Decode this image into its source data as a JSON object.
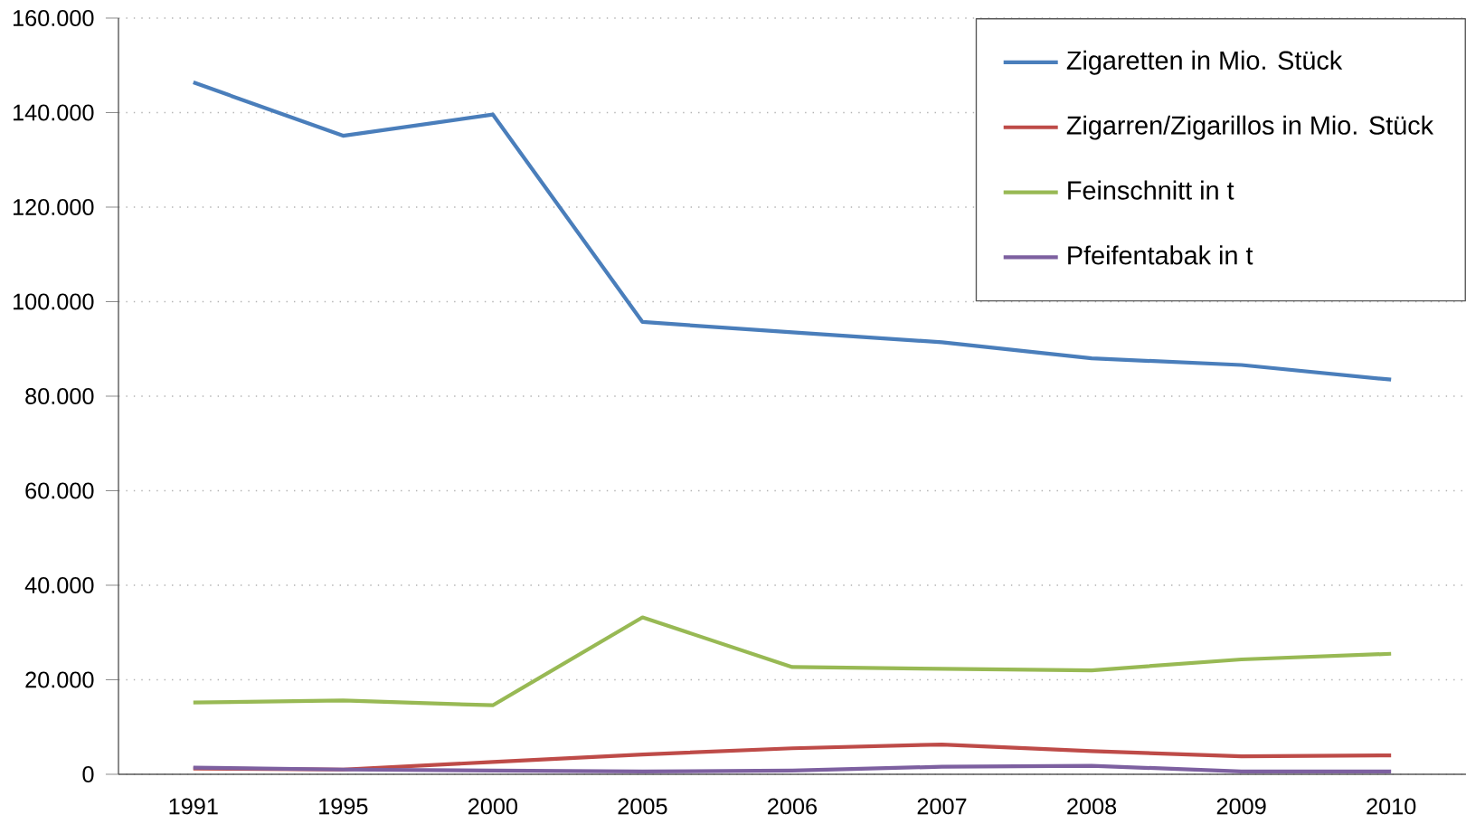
{
  "chart_data": {
    "type": "line",
    "categories": [
      "1991",
      "1995",
      "2000",
      "2005",
      "2006",
      "2007",
      "2008",
      "2009",
      "2010"
    ],
    "series": [
      {
        "name": "Zigaretten in Mio. Stück",
        "color": "#4a7ebb",
        "values": [
          146400,
          135100,
          139600,
          95700,
          93500,
          91400,
          88000,
          86600,
          83500
        ]
      },
      {
        "name": "Zigarren/Zigarillos in Mio. Stück",
        "color": "#be4b48",
        "values": [
          1200,
          1000,
          2600,
          4200,
          5500,
          6300,
          4900,
          3800,
          4000
        ]
      },
      {
        "name": "Feinschnitt in t",
        "color": "#98b954",
        "values": [
          15200,
          15600,
          14600,
          33200,
          22700,
          22300,
          22000,
          24300,
          25500
        ]
      },
      {
        "name": "Pfeifentabak in t",
        "color": "#7d60a0",
        "values": [
          1400,
          1000,
          800,
          600,
          800,
          1600,
          1800,
          600,
          600
        ]
      }
    ],
    "ylim": [
      0,
      160000
    ],
    "yticks": [
      {
        "value": 0,
        "label": "0"
      },
      {
        "value": 20000,
        "label": "20.000"
      },
      {
        "value": 40000,
        "label": "40.000"
      },
      {
        "value": 60000,
        "label": "60.000"
      },
      {
        "value": 80000,
        "label": "80.000"
      },
      {
        "value": 100000,
        "label": "100.000"
      },
      {
        "value": 120000,
        "label": "120.000"
      },
      {
        "value": 140000,
        "label": "140.000"
      },
      {
        "value": 160000,
        "label": "160.000"
      }
    ],
    "grid": "y",
    "legend": "top right",
    "marker": "none",
    "line_style": "solid"
  }
}
